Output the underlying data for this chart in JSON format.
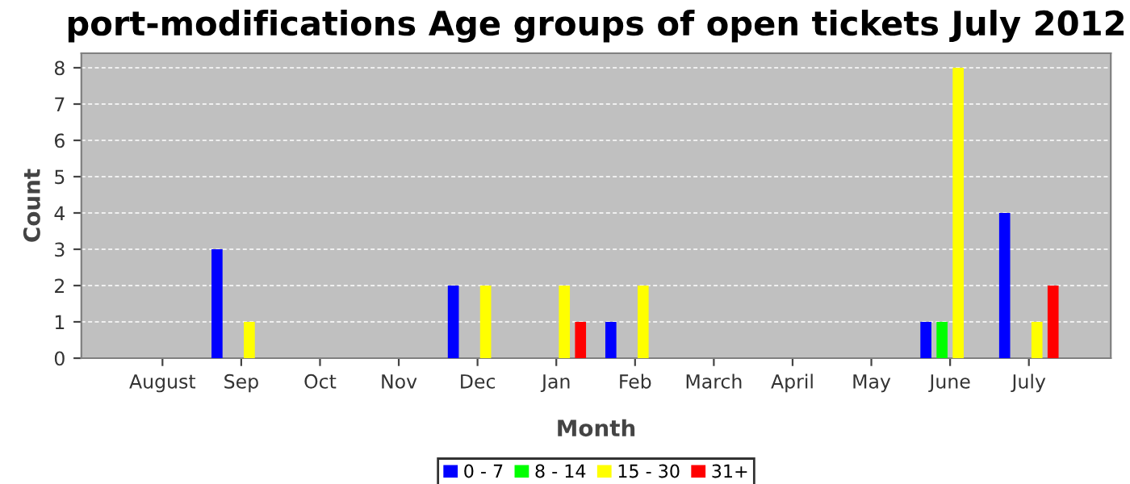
{
  "chart_data": {
    "type": "bar",
    "title": "port-modifications Age groups of open tickets July 2012",
    "xlabel": "Month",
    "ylabel": "Count",
    "categories": [
      "August",
      "Sep",
      "Oct",
      "Nov",
      "Dec",
      "Jan",
      "Feb",
      "March",
      "April",
      "May",
      "June",
      "July"
    ],
    "series": [
      {
        "name": "0 - 7",
        "color": "#0000ff",
        "values": [
          0,
          3,
          0,
          0,
          2,
          0,
          1,
          0,
          0,
          0,
          1,
          4
        ]
      },
      {
        "name": "8 - 14",
        "color": "#00ff00",
        "values": [
          0,
          0,
          0,
          0,
          0,
          0,
          0,
          0,
          0,
          0,
          1,
          0
        ]
      },
      {
        "name": "15 - 30",
        "color": "#ffff00",
        "values": [
          0,
          1,
          0,
          0,
          2,
          2,
          2,
          0,
          0,
          0,
          8,
          1
        ]
      },
      {
        "name": "31+",
        "color": "#ff0000",
        "values": [
          0,
          0,
          0,
          0,
          0,
          1,
          0,
          0,
          0,
          0,
          0,
          2
        ]
      }
    ],
    "ylim": [
      0,
      8.4
    ],
    "yticks": [
      0,
      1,
      2,
      3,
      4,
      5,
      6,
      7,
      8
    ],
    "grid": "y",
    "legend": "bottom"
  }
}
